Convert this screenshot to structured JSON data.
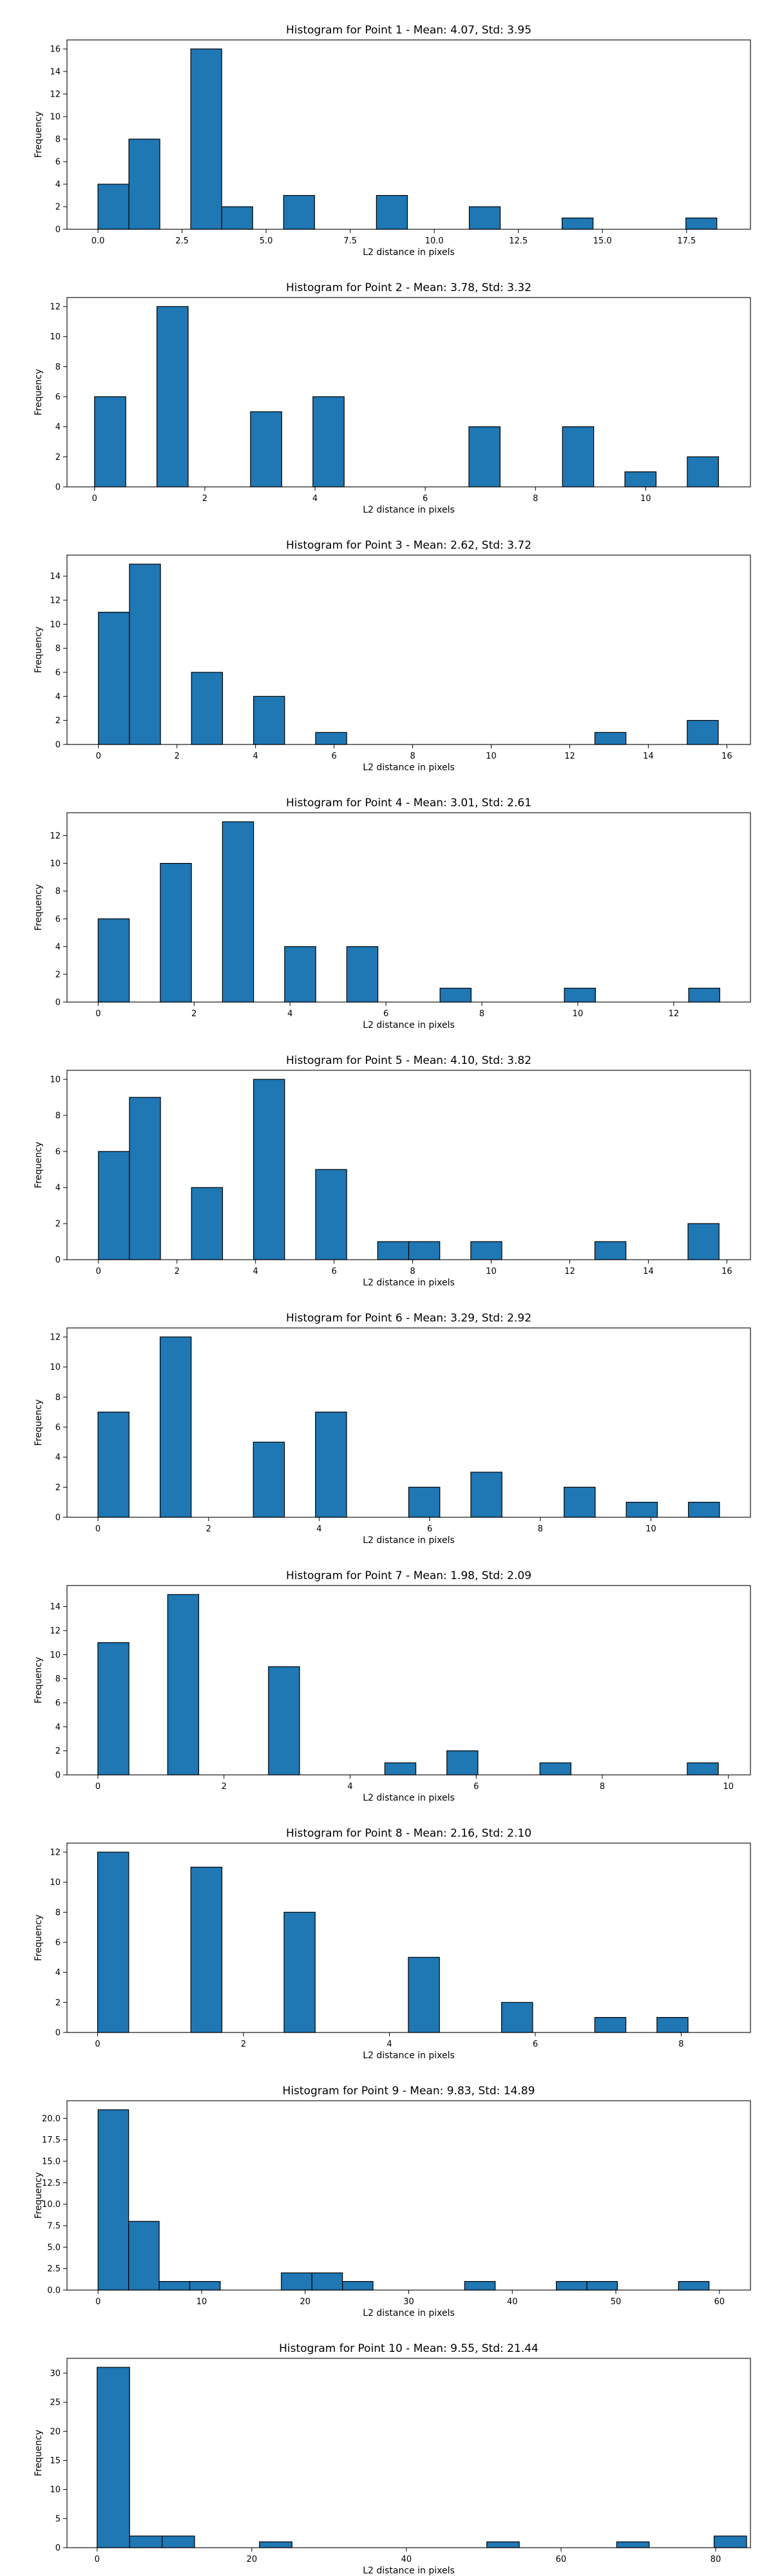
{
  "chart_data": [
    {
      "type": "bar",
      "title": "Histogram for Point 1 - Mean: 4.07, Std: 3.95",
      "xlabel": "L2 distance in pixels",
      "ylabel": "Frequency",
      "xlim": [
        -0.92,
        19.4
      ],
      "ylim": [
        0,
        16.8
      ],
      "xticks": [
        0.0,
        2.5,
        5.0,
        7.5,
        10.0,
        12.5,
        15.0,
        17.5
      ],
      "xtick_labels": [
        "0.0",
        "2.5",
        "5.0",
        "7.5",
        "10.0",
        "12.5",
        "15.0",
        "17.5"
      ],
      "yticks": [
        0,
        2,
        4,
        6,
        8,
        10,
        12,
        14,
        16
      ],
      "bin_width": 0.92,
      "bins": [
        {
          "x": 0.0,
          "count": 4
        },
        {
          "x": 0.92,
          "count": 8
        },
        {
          "x": 2.76,
          "count": 16
        },
        {
          "x": 3.68,
          "count": 2
        },
        {
          "x": 5.52,
          "count": 3
        },
        {
          "x": 8.28,
          "count": 3
        },
        {
          "x": 11.04,
          "count": 2
        },
        {
          "x": 13.8,
          "count": 1
        },
        {
          "x": 17.48,
          "count": 1
        }
      ]
    },
    {
      "type": "bar",
      "title": "Histogram for Point 2 - Mean: 3.78, Std: 3.32",
      "xlabel": "L2 distance in pixels",
      "ylabel": "Frequency",
      "xlim": [
        -0.5,
        11.9
      ],
      "ylim": [
        0,
        12.6
      ],
      "xticks": [
        0,
        2,
        4,
        6,
        8,
        10
      ],
      "xtick_labels": [
        "0",
        "2",
        "4",
        "6",
        "8",
        "10"
      ],
      "yticks": [
        0,
        2,
        4,
        6,
        8,
        10,
        12
      ],
      "bin_width": 0.566,
      "bins": [
        {
          "x": 0.0,
          "count": 6
        },
        {
          "x": 1.132,
          "count": 12
        },
        {
          "x": 2.83,
          "count": 5
        },
        {
          "x": 3.962,
          "count": 6
        },
        {
          "x": 6.792,
          "count": 4
        },
        {
          "x": 8.49,
          "count": 4
        },
        {
          "x": 9.622,
          "count": 1
        },
        {
          "x": 10.754,
          "count": 2
        }
      ]
    },
    {
      "type": "bar",
      "title": "Histogram for Point 3 - Mean: 2.62, Std: 3.72",
      "xlabel": "L2 distance in pixels",
      "ylabel": "Frequency",
      "xlim": [
        -0.8,
        16.6
      ],
      "ylim": [
        0,
        15.75
      ],
      "xticks": [
        0,
        2,
        4,
        6,
        8,
        10,
        12,
        14,
        16
      ],
      "xtick_labels": [
        "0",
        "2",
        "4",
        "6",
        "8",
        "10",
        "12",
        "14",
        "16"
      ],
      "yticks": [
        0,
        2,
        4,
        6,
        8,
        10,
        12,
        14
      ],
      "bin_width": 0.79,
      "bins": [
        {
          "x": 0.0,
          "count": 11
        },
        {
          "x": 0.79,
          "count": 15
        },
        {
          "x": 2.37,
          "count": 6
        },
        {
          "x": 3.95,
          "count": 4
        },
        {
          "x": 5.53,
          "count": 1
        },
        {
          "x": 12.64,
          "count": 1
        },
        {
          "x": 14.99,
          "count": 2
        }
      ]
    },
    {
      "type": "bar",
      "title": "Histogram for Point 4 - Mean: 3.01, Std: 2.61",
      "xlabel": "L2 distance in pixels",
      "ylabel": "Frequency",
      "xlim": [
        -0.65,
        13.6
      ],
      "ylim": [
        0,
        13.65
      ],
      "xticks": [
        0,
        2,
        4,
        6,
        8,
        10,
        12
      ],
      "xtick_labels": [
        "0",
        "2",
        "4",
        "6",
        "8",
        "10",
        "12"
      ],
      "yticks": [
        0,
        2,
        4,
        6,
        8,
        10,
        12
      ],
      "bin_width": 0.648,
      "bins": [
        {
          "x": 0.0,
          "count": 6
        },
        {
          "x": 1.296,
          "count": 10
        },
        {
          "x": 2.592,
          "count": 13
        },
        {
          "x": 3.888,
          "count": 4
        },
        {
          "x": 5.184,
          "count": 4
        },
        {
          "x": 7.128,
          "count": 1
        },
        {
          "x": 9.72,
          "count": 1
        },
        {
          "x": 12.312,
          "count": 1
        }
      ]
    },
    {
      "type": "bar",
      "title": "Histogram for Point 5 - Mean: 4.10, Std: 3.82",
      "xlabel": "L2 distance in pixels",
      "ylabel": "Frequency",
      "xlim": [
        -0.8,
        16.6
      ],
      "ylim": [
        0,
        10.5
      ],
      "xticks": [
        0,
        2,
        4,
        6,
        8,
        10,
        12,
        14,
        16
      ],
      "xtick_labels": [
        "0",
        "2",
        "4",
        "6",
        "8",
        "10",
        "12",
        "14",
        "16"
      ],
      "yticks": [
        0,
        2,
        4,
        6,
        8,
        10
      ],
      "bin_width": 0.79,
      "bins": [
        {
          "x": 0.0,
          "count": 6
        },
        {
          "x": 0.79,
          "count": 9
        },
        {
          "x": 2.37,
          "count": 4
        },
        {
          "x": 3.95,
          "count": 10
        },
        {
          "x": 5.53,
          "count": 5
        },
        {
          "x": 7.11,
          "count": 1
        },
        {
          "x": 7.9,
          "count": 1
        },
        {
          "x": 9.48,
          "count": 1
        },
        {
          "x": 12.64,
          "count": 1
        },
        {
          "x": 15.01,
          "count": 2
        }
      ]
    },
    {
      "type": "bar",
      "title": "Histogram for Point 6 - Mean: 3.29, Std: 2.92",
      "xlabel": "L2 distance in pixels",
      "ylabel": "Frequency",
      "xlim": [
        -0.56,
        11.8
      ],
      "ylim": [
        0,
        12.6
      ],
      "xticks": [
        0,
        2,
        4,
        6,
        8,
        10
      ],
      "xtick_labels": [
        "0",
        "2",
        "4",
        "6",
        "8",
        "10"
      ],
      "yticks": [
        0,
        2,
        4,
        6,
        8,
        10,
        12
      ],
      "bin_width": 0.562,
      "bins": [
        {
          "x": 0.0,
          "count": 7
        },
        {
          "x": 1.124,
          "count": 12
        },
        {
          "x": 2.81,
          "count": 5
        },
        {
          "x": 3.934,
          "count": 7
        },
        {
          "x": 5.62,
          "count": 2
        },
        {
          "x": 6.744,
          "count": 3
        },
        {
          "x": 8.43,
          "count": 2
        },
        {
          "x": 9.554,
          "count": 1
        },
        {
          "x": 10.678,
          "count": 1
        }
      ]
    },
    {
      "type": "bar",
      "title": "Histogram for Point 7 - Mean: 1.98, Std: 2.09",
      "xlabel": "L2 distance in pixels",
      "ylabel": "Frequency",
      "xlim": [
        -0.49,
        10.35
      ],
      "ylim": [
        0,
        15.75
      ],
      "xticks": [
        0,
        2,
        4,
        6,
        8,
        10
      ],
      "xtick_labels": [
        "0",
        "2",
        "4",
        "6",
        "8",
        "10"
      ],
      "yticks": [
        0,
        2,
        4,
        6,
        8,
        10,
        12,
        14
      ],
      "bin_width": 0.492,
      "bins": [
        {
          "x": 0.0,
          "count": 11
        },
        {
          "x": 1.107,
          "count": 15
        },
        {
          "x": 2.706,
          "count": 9
        },
        {
          "x": 4.551,
          "count": 1
        },
        {
          "x": 5.535,
          "count": 2
        },
        {
          "x": 7.011,
          "count": 1
        },
        {
          "x": 9.348,
          "count": 1
        }
      ]
    },
    {
      "type": "bar",
      "title": "Histogram for Point 8 - Mean: 2.16, Std: 2.10",
      "xlabel": "L2 distance in pixels",
      "ylabel": "Frequency",
      "xlim": [
        -0.42,
        8.95
      ],
      "ylim": [
        0,
        12.6
      ],
      "xticks": [
        0,
        2,
        4,
        6,
        8
      ],
      "xtick_labels": [
        "0",
        "2",
        "4",
        "6",
        "8"
      ],
      "yticks": [
        0,
        2,
        4,
        6,
        8,
        10,
        12
      ],
      "bin_width": 0.426,
      "bins": [
        {
          "x": 0.0,
          "count": 12
        },
        {
          "x": 1.278,
          "count": 11
        },
        {
          "x": 2.556,
          "count": 8
        },
        {
          "x": 4.26,
          "count": 5
        },
        {
          "x": 5.538,
          "count": 2
        },
        {
          "x": 6.816,
          "count": 1
        },
        {
          "x": 7.668,
          "count": 1
        }
      ]
    },
    {
      "type": "bar",
      "title": "Histogram for Point 9 - Mean: 9.83, Std: 14.89",
      "xlabel": "L2 distance in pixels",
      "ylabel": "Frequency",
      "xlim": [
        -3.0,
        63.0
      ],
      "ylim": [
        0,
        22.05
      ],
      "xticks": [
        0,
        10,
        20,
        30,
        40,
        50,
        60
      ],
      "xtick_labels": [
        "0",
        "10",
        "20",
        "30",
        "40",
        "50",
        "60"
      ],
      "yticks": [
        0.0,
        2.5,
        5.0,
        7.5,
        10.0,
        12.5,
        15.0,
        17.5,
        20.0
      ],
      "ytick_labels": [
        "0.0",
        "2.5",
        "5.0",
        "7.5",
        "10.0",
        "12.5",
        "15.0",
        "17.5",
        "20.0"
      ],
      "bin_width": 2.95,
      "bins": [
        {
          "x": 0.0,
          "count": 21
        },
        {
          "x": 2.95,
          "count": 8
        },
        {
          "x": 5.9,
          "count": 1
        },
        {
          "x": 8.85,
          "count": 1
        },
        {
          "x": 17.7,
          "count": 2
        },
        {
          "x": 20.65,
          "count": 2
        },
        {
          "x": 23.6,
          "count": 1
        },
        {
          "x": 35.4,
          "count": 1
        },
        {
          "x": 44.25,
          "count": 1
        },
        {
          "x": 47.2,
          "count": 1
        },
        {
          "x": 56.05,
          "count": 1
        }
      ]
    },
    {
      "type": "bar",
      "title": "Histogram for Point 10 - Mean: 9.55, Std: 21.44",
      "xlabel": "L2 distance in pixels",
      "ylabel": "Frequency",
      "xlim": [
        -3.9,
        84.5
      ],
      "ylim": [
        0,
        32.55
      ],
      "xticks": [
        0,
        20,
        40,
        60,
        80
      ],
      "xtick_labels": [
        "0",
        "20",
        "40",
        "60",
        "80"
      ],
      "yticks": [
        0,
        5,
        10,
        15,
        20,
        25,
        30
      ],
      "bin_width": 4.2,
      "bins": [
        {
          "x": 0.0,
          "count": 31
        },
        {
          "x": 4.2,
          "count": 2
        },
        {
          "x": 8.4,
          "count": 2
        },
        {
          "x": 21.0,
          "count": 1
        },
        {
          "x": 50.4,
          "count": 1
        },
        {
          "x": 67.2,
          "count": 1
        },
        {
          "x": 79.8,
          "count": 2
        }
      ]
    }
  ],
  "colors": {
    "bar_fill": "#1f77b4",
    "bar_edge": "#000000",
    "axis": "#000000",
    "text": "#000000"
  }
}
